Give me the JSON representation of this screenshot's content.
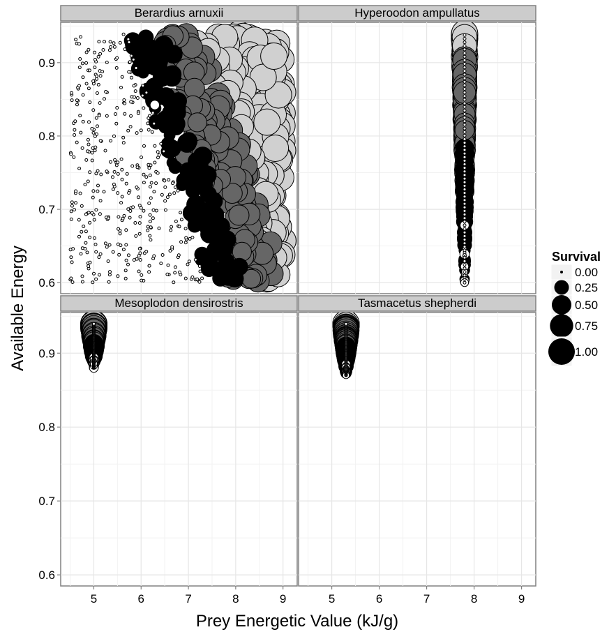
{
  "chart_data": {
    "type": "scatter",
    "xlabel": "Prey Energetic Value (kJ/g)",
    "ylabel": "Available Energy",
    "x_range": [
      4.3,
      9.3
    ],
    "y_range": [
      0.585,
      0.955
    ],
    "x_ticks": [
      5,
      6,
      7,
      8,
      9
    ],
    "y_ticks": [
      0.6,
      0.7,
      0.8,
      0.9
    ],
    "x_tick_labels": [
      "5",
      "6",
      "7",
      "8",
      "9"
    ],
    "y_tick_labels": [
      "0.6",
      "0.7",
      "0.8",
      "0.9"
    ],
    "grid": true,
    "size_legend": {
      "title": "Survival",
      "values": [
        0.0,
        0.25,
        0.5,
        0.75,
        1.0
      ],
      "labels": [
        "0.00",
        "0.25",
        "0.50",
        "0.75",
        "1.00"
      ],
      "placement": "right"
    },
    "fill_colors": {
      "low": "#ffffff",
      "high_dark": "#000000",
      "mid": "#666666",
      "highest": "#d0d0d0"
    },
    "panels": [
      {
        "name": "Berardius arnuxii",
        "x_range": [
          4.5,
          9.0
        ],
        "y_range": [
          0.6,
          0.94
        ],
        "rule": "gradient"
      },
      {
        "name": "Hyperoodon ampullatus",
        "x_value": 7.8,
        "y_range": [
          0.6,
          0.94
        ],
        "rule": "vertical"
      },
      {
        "name": "Mesoplodon densirostris",
        "x_value": 5.0,
        "y_range": [
          0.88,
          0.94
        ],
        "rule": "vertical"
      },
      {
        "name": "Tasmacetus shepherdi",
        "x_value": 5.3,
        "y_range": [
          0.87,
          0.94
        ],
        "rule": "vertical"
      }
    ]
  }
}
